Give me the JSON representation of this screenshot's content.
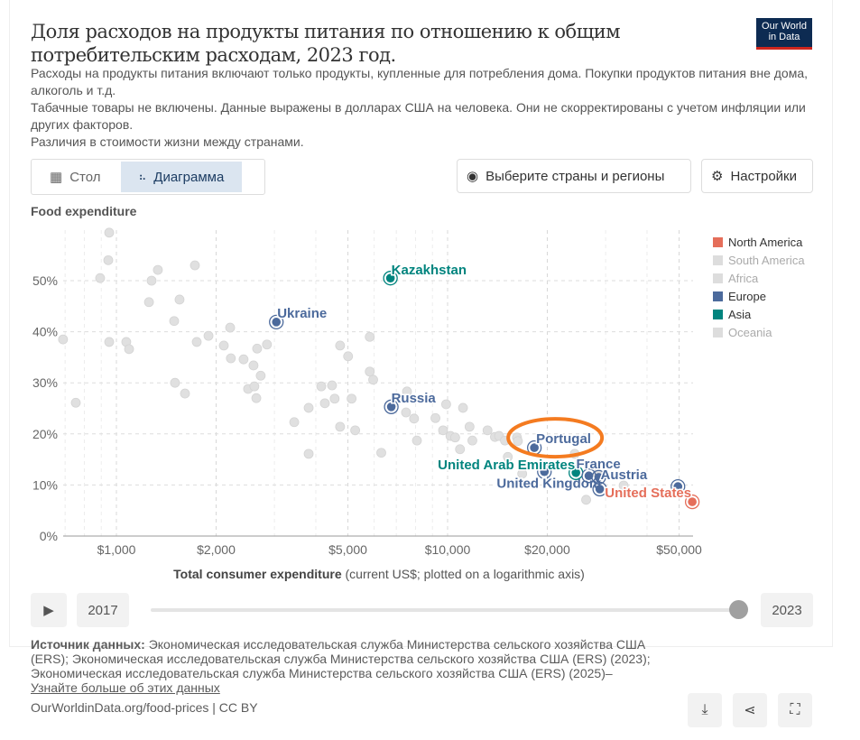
{
  "header": {
    "title": "Доля расходов на продукты питания по отношению к общим потребительским расходам, 2023 год.",
    "subtitle_lines": [
      "Расходы на продукты питания включают только продукты, купленные для потребления дома. Покупки продуктов питания вне дома, алкоголь и т.д.",
      "Табачные товары не включены. Данные выражены в долларах США на человека. Они не скорректированы с учетом инфляции или других факторов.",
      "Различия в стоимости жизни между странами."
    ],
    "logo": "Our World in Data"
  },
  "tabs": [
    {
      "label": "Стол",
      "icon": "table-icon"
    },
    {
      "label": "Диаграмма",
      "icon": "chart-icon",
      "active": true
    }
  ],
  "controls": {
    "select_countries": "Выберите страны и регионы",
    "settings": "Настройки"
  },
  "timeline": {
    "start": "2017",
    "end": "2023",
    "value": "2023"
  },
  "footer": {
    "source_label": "Источник данных:",
    "source_text": " Экономическая исследовательская служба Министерства сельского хозяйства США (ERS); Экономическая исследовательская служба Министерства сельского хозяйства США (ERS) (2023); Экономическая исследовательская служба Министерства сельского хозяйства США (ERS) (2025)–",
    "learn_more": "Узнайте больше об этих данных",
    "url": "OurWorldinData.org/food-prices | CC BY"
  },
  "chart_data": {
    "type": "scatter",
    "title": "Доля расходов на продукты питания по отношению к общим потребительским расходам, 2023 год.",
    "ylabel": "Food expenditure",
    "xlabel_bold": "Total consumer expenditure",
    "xlabel_rest": " (current US$; plotted on a logarithmic axis)",
    "x_scale": "log",
    "xlim": [
      690,
      55000
    ],
    "ylim": [
      0,
      60
    ],
    "x_ticks": [
      {
        "v": 1000,
        "label": "$1,000"
      },
      {
        "v": 2000,
        "label": "$2,000"
      },
      {
        "v": 5000,
        "label": "$5,000"
      },
      {
        "v": 10000,
        "label": "$10,000"
      },
      {
        "v": 20000,
        "label": "$20,000"
      },
      {
        "v": 50000,
        "label": "$50,000"
      }
    ],
    "y_ticks": [
      {
        "v": 0,
        "label": "0%"
      },
      {
        "v": 10,
        "label": "10%"
      },
      {
        "v": 20,
        "label": "20%"
      },
      {
        "v": 30,
        "label": "30%"
      },
      {
        "v": 40,
        "label": "40%"
      },
      {
        "v": 50,
        "label": "50%"
      }
    ],
    "grid": true,
    "legend_position": "right",
    "legend": [
      {
        "name": "North America",
        "color": "#e56e5a",
        "active": true
      },
      {
        "name": "South America",
        "color": "#dddddd",
        "active": false
      },
      {
        "name": "Africa",
        "color": "#dddddd",
        "active": false
      },
      {
        "name": "Europe",
        "color": "#4c6a9c",
        "active": true
      },
      {
        "name": "Asia",
        "color": "#00847e",
        "active": true
      },
      {
        "name": "Oceania",
        "color": "#dddddd",
        "active": false
      }
    ],
    "background_points": [
      [
        690,
        38.5
      ],
      [
        754,
        26.1
      ],
      [
        951,
        59.4
      ],
      [
        945,
        54
      ],
      [
        893,
        50.5
      ],
      [
        951,
        38
      ],
      [
        1071,
        38
      ],
      [
        1092,
        36.6
      ],
      [
        1277,
        50
      ],
      [
        1334,
        52.1
      ],
      [
        1254,
        45.8
      ],
      [
        1551,
        46.3
      ],
      [
        1494,
        42.1
      ],
      [
        1503,
        30
      ],
      [
        1611,
        27.9
      ],
      [
        1726,
        53
      ],
      [
        1748,
        38
      ],
      [
        1897,
        39.2
      ],
      [
        2205,
        40.8
      ],
      [
        2110,
        37.3
      ],
      [
        2216,
        34.8
      ],
      [
        2421,
        34.6
      ],
      [
        2594,
        33.4
      ],
      [
        2660,
        36.7
      ],
      [
        2848,
        37.5
      ],
      [
        2727,
        31.4
      ],
      [
        2498,
        28.8
      ],
      [
        2610,
        29.3
      ],
      [
        2645,
        27
      ],
      [
        3443,
        22.3
      ],
      [
        3806,
        25.1
      ],
      [
        3806,
        16.1
      ],
      [
        4155,
        29.3
      ],
      [
        4478,
        29.5
      ],
      [
        4260,
        26
      ],
      [
        4560,
        26.9
      ],
      [
        4736,
        21.4
      ],
      [
        4736,
        37.3
      ],
      [
        5007,
        35.2
      ],
      [
        5130,
        26.9
      ],
      [
        5260,
        20.7
      ],
      [
        5820,
        39
      ],
      [
        5820,
        32.2
      ],
      [
        5960,
        30.6
      ],
      [
        6306,
        16.3
      ],
      [
        7490,
        24.2
      ],
      [
        7920,
        23
      ],
      [
        8080,
        18.7
      ],
      [
        7540,
        28.3
      ],
      [
        9900,
        25.8
      ],
      [
        11130,
        25.1
      ],
      [
        9190,
        23.1
      ],
      [
        9690,
        20.7
      ],
      [
        10200,
        19.6
      ],
      [
        10540,
        19.3
      ],
      [
        10900,
        17
      ],
      [
        11650,
        21.4
      ],
      [
        11880,
        18.7
      ],
      [
        13200,
        20.7
      ],
      [
        13900,
        19.4
      ],
      [
        14300,
        19.6
      ],
      [
        14900,
        18.7
      ],
      [
        16200,
        19.3
      ],
      [
        16300,
        18.6
      ],
      [
        15200,
        15.5
      ],
      [
        16800,
        12.2
      ],
      [
        24200,
        16.1
      ],
      [
        28400,
        12.2
      ],
      [
        26200,
        7.1
      ],
      [
        34000,
        9.9
      ]
    ],
    "highlighted": [
      {
        "name": "Kazakhstan",
        "region": "Asia",
        "x": 6720,
        "y": 50.5
      },
      {
        "name": "Ukraine",
        "region": "Europe",
        "x": 3040,
        "y": 41.9
      },
      {
        "name": "Russia",
        "region": "Europe",
        "x": 6760,
        "y": 25.3
      },
      {
        "name": "Portugal",
        "region": "Europe",
        "x": 18280,
        "y": 17.3
      },
      {
        "name": "United Kingdom",
        "region": "Europe",
        "x": 19600,
        "y": 12.6
      },
      {
        "name": "United Arab Emirates",
        "region": "Asia",
        "x": 24400,
        "y": 12.4
      },
      {
        "name": "France",
        "region": "Europe",
        "x": 26700,
        "y": 11.8
      },
      {
        "name": "Austria",
        "region": "Europe",
        "x": 28600,
        "y": 11.5
      },
      {
        "name": "",
        "region": "Europe",
        "x": 28800,
        "y": 9.2
      },
      {
        "name": "",
        "region": "Europe",
        "x": 49600,
        "y": 9.7
      },
      {
        "name": "United States",
        "region": "North America",
        "x": 54800,
        "y": 6.7
      }
    ],
    "annotation": {
      "type": "ellipse",
      "target": "Portugal",
      "color": "#f47b20"
    }
  }
}
